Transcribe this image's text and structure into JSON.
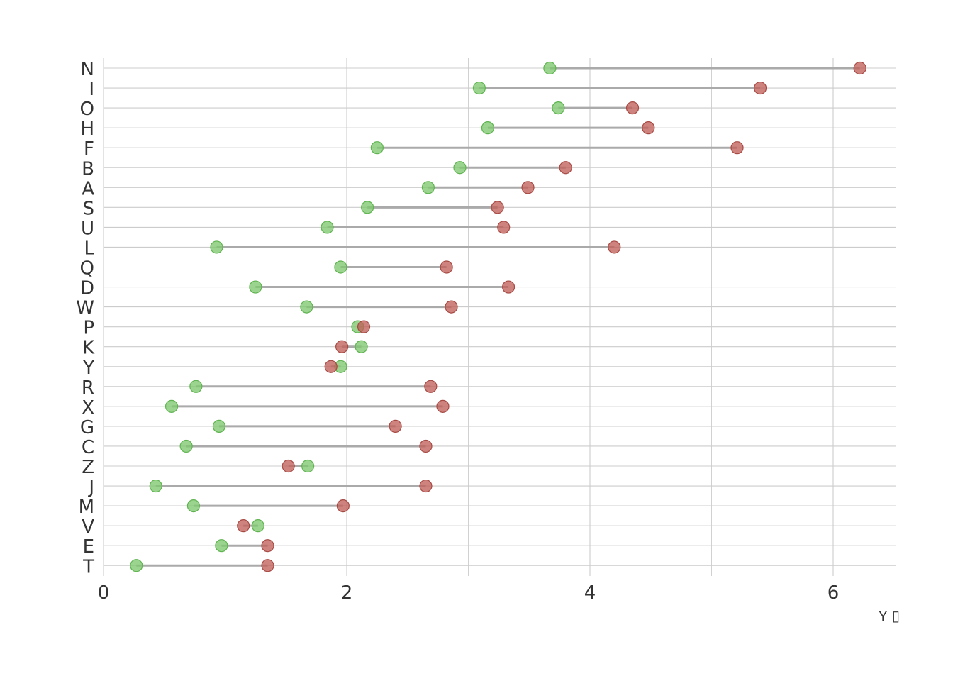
{
  "chart_data": {
    "type": "dumbbell",
    "title": "",
    "xlabel": "Y",
    "xlabel_marker": "▯",
    "ylabel": "",
    "xlim": [
      0,
      6.5
    ],
    "x_ticks": [
      0,
      2,
      4,
      6
    ],
    "grid": true,
    "legend": "none",
    "colors": {
      "start": "#7ec86e",
      "end": "#c0605a",
      "segment": "#aaaaaa",
      "grid": "#cccccc"
    },
    "categories": [
      "N",
      "I",
      "O",
      "H",
      "F",
      "B",
      "A",
      "S",
      "U",
      "L",
      "Q",
      "D",
      "W",
      "P",
      "K",
      "Y",
      "R",
      "X",
      "G",
      "C",
      "Z",
      "J",
      "M",
      "V",
      "E",
      "T"
    ],
    "start": [
      3.67,
      3.09,
      3.74,
      3.16,
      2.25,
      2.93,
      2.67,
      2.17,
      1.84,
      0.93,
      1.95,
      1.25,
      1.67,
      2.09,
      2.12,
      1.95,
      0.76,
      0.56,
      0.95,
      0.68,
      1.68,
      0.43,
      0.74,
      1.27,
      0.97,
      0.27
    ],
    "end": [
      6.22,
      5.4,
      4.35,
      4.48,
      5.21,
      3.8,
      3.49,
      3.24,
      3.29,
      4.2,
      2.82,
      3.33,
      2.86,
      2.14,
      1.96,
      1.87,
      2.69,
      2.79,
      2.4,
      2.65,
      1.52,
      2.65,
      1.97,
      1.15,
      1.35,
      1.35
    ]
  }
}
